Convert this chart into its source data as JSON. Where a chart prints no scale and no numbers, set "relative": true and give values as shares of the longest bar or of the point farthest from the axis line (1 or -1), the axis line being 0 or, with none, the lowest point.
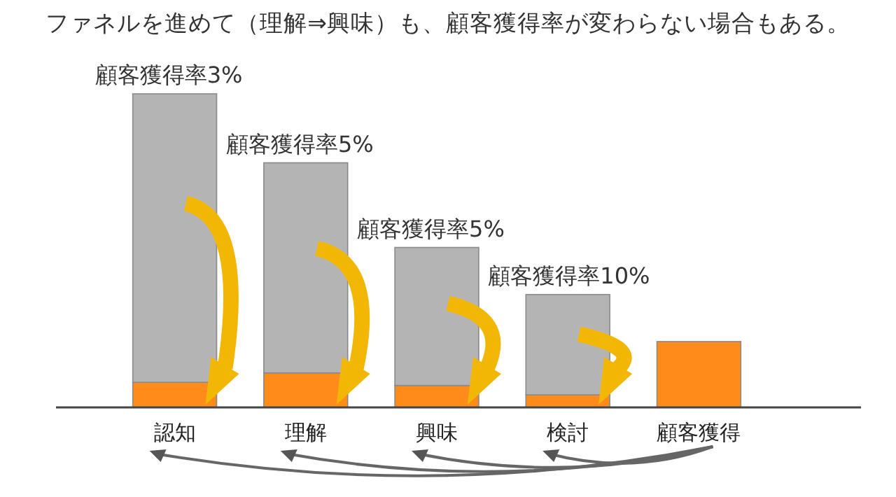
{
  "chart_data": {
    "type": "bar",
    "title": "ファネルを進めて（理解⇒興味）も、顧客獲得率が変わらない場合もある。",
    "relative": true,
    "stacked": true,
    "categories": [
      "認知",
      "理解",
      "興味",
      "検討",
      "顧客獲得"
    ],
    "series": [
      {
        "color": "#ff8c1a",
        "values": [
          0.08,
          0.11,
          0.07,
          0.04,
          0.21
        ]
      },
      {
        "color": "#b4b4b4",
        "values": [
          0.92,
          0.67,
          0.44,
          0.32,
          0
        ]
      }
    ],
    "annotations": [
      {
        "text": "顧客獲得率3%",
        "x": "認知",
        "y": 1
      },
      {
        "text": "顧客獲得率5%",
        "x": "理解",
        "y": 0.78
      },
      {
        "text": "顧客獲得率5%",
        "x": "興味",
        "y": 0.51
      },
      {
        "text": "顧客獲得率10%",
        "x": "検討",
        "y": 0.36
      }
    ]
  }
}
